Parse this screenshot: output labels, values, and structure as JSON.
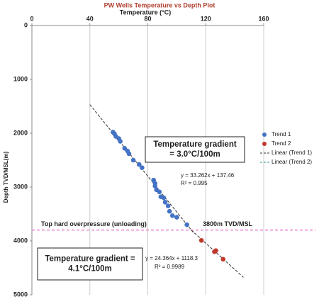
{
  "chart_data": {
    "type": "scatter",
    "title": "PW Wells Temperature vs Depth Plot",
    "x_label": "Temperature (°C)",
    "y_label": "Depth TVD/MSL(m)",
    "x_axis_position": "top",
    "y_inverted": true,
    "xlim": [
      0,
      160
    ],
    "xticks": [
      0,
      40,
      80,
      120,
      160
    ],
    "ylim": [
      0,
      5000
    ],
    "yticks": [
      0,
      1000,
      2000,
      3000,
      4000,
      5000
    ],
    "xgrid": true,
    "legend": "right",
    "series": [
      {
        "name": "Trend 1",
        "color": "#4472c4",
        "x": [
          56,
          57,
          58,
          60,
          61,
          64,
          66,
          67,
          70,
          74,
          76,
          84,
          85,
          85,
          86,
          88,
          89,
          91,
          92,
          94,
          95,
          97,
          100,
          107
        ],
        "y": [
          1980,
          2010,
          2060,
          2100,
          2150,
          2280,
          2330,
          2380,
          2500,
          2580,
          2640,
          2870,
          2930,
          2980,
          3050,
          3090,
          3180,
          3200,
          3280,
          3350,
          3450,
          3530,
          3560,
          3700
        ],
        "trendline": {
          "name": "Linear (Trend 1)",
          "color": "#333333",
          "slope": 33.262,
          "intercept": 137.46,
          "equation": "y = 33.262x + 137.46",
          "r2_label": "R² = 0.995"
        }
      },
      {
        "name": "Trend 2",
        "color": "#c0392b",
        "x": [
          117,
          126,
          127,
          132
        ],
        "y": [
          3990,
          4200,
          4180,
          4340
        ],
        "trendline": {
          "name": "Linear (Trend 2)",
          "color": "#2a9d8f",
          "slope": 24.364,
          "intercept": 1118.3,
          "equation": "y = 24.364x + 1118.3",
          "r2_label": "R² = 0.9989"
        }
      }
    ],
    "hlines": [
      {
        "value": 3800,
        "color": "#e040c0",
        "label": "Top hard overpressure (unloading)",
        "value_label": "3800m TVD/MSL"
      }
    ],
    "boxes": [
      [
        "Temperature gradient",
        "= 3.0°C/100m"
      ],
      [
        "Temperature gradient =",
        "4.1°C/100m"
      ]
    ]
  }
}
